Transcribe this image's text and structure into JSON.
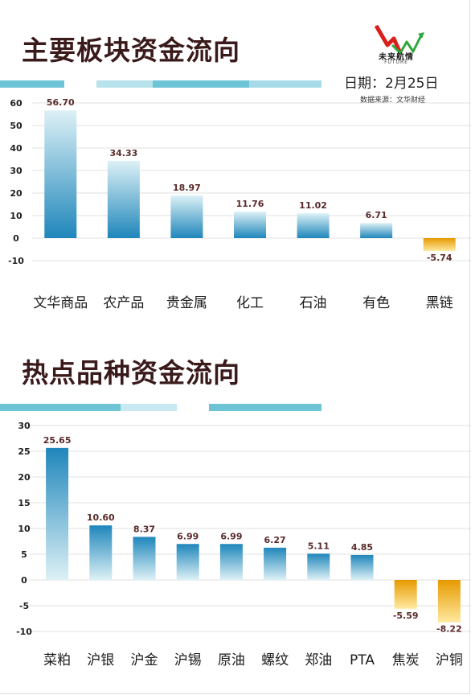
{
  "header": {
    "date": "日期：2月25日",
    "source": "数据来源：文华财经",
    "logo": {
      "name": "未来航情",
      "sub": "FUTURE"
    }
  },
  "colors": {
    "positive_dark": "#1f86bb",
    "positive_light": "#ddf1f6",
    "negative_dark": "#ffe9a0",
    "negative_light": "#e69a00",
    "band_a": "#6cc4d6",
    "band_b": "#b8e2ec",
    "title": "#3a1a1a"
  },
  "chart_data": [
    {
      "type": "bar",
      "title": "主要板块资金流向",
      "categories": [
        "文华商品",
        "农产品",
        "贵金属",
        "化工",
        "石油",
        "有色",
        "黑链"
      ],
      "values": [
        56.7,
        34.33,
        18.97,
        11.76,
        11.02,
        6.71,
        -5.74
      ],
      "value_labels": [
        "56.70",
        "34.33",
        "18.97",
        "11.76",
        "11.02",
        "6.71",
        "-5.74"
      ],
      "yticks": [
        60,
        50,
        40,
        30,
        20,
        10,
        0,
        -10
      ],
      "ylim": [
        -10,
        60
      ],
      "grid": true,
      "gradient": "dark-bottom"
    },
    {
      "type": "bar",
      "title": "热点品种资金流向",
      "categories": [
        "菜粕",
        "沪银",
        "沪金",
        "沪锡",
        "原油",
        "螺纹",
        "郑油",
        "PTA",
        "焦炭",
        "沪铜"
      ],
      "values": [
        25.65,
        10.6,
        8.37,
        6.99,
        6.99,
        6.27,
        5.11,
        4.85,
        -5.59,
        -8.22
      ],
      "value_labels": [
        "25.65",
        "10.60",
        "8.37",
        "6.99",
        "6.99",
        "6.27",
        "5.11",
        "4.85",
        "-5.59",
        "-8.22"
      ],
      "yticks": [
        30,
        25,
        20,
        15,
        10,
        5,
        0,
        -5,
        -10
      ],
      "ylim": [
        -10,
        30
      ],
      "grid": true,
      "gradient": "dark-top"
    }
  ]
}
